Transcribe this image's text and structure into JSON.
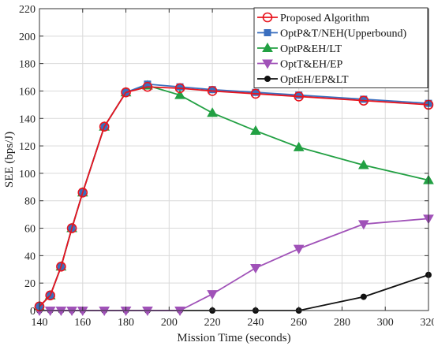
{
  "chart_data": {
    "type": "line",
    "title": "",
    "xlabel": "Mission Time (seconds)",
    "ylabel": "SEE (bps/J)",
    "xlim": [
      140,
      320
    ],
    "ylim": [
      0,
      220
    ],
    "xticks": [
      140,
      160,
      180,
      200,
      220,
      240,
      260,
      280,
      300,
      320
    ],
    "yticks": [
      0,
      20,
      40,
      60,
      80,
      100,
      120,
      140,
      160,
      180,
      200,
      220
    ],
    "grid": true,
    "legend_position": "top-right",
    "series": [
      {
        "name": "Proposed Algorithm",
        "color": "#e8141e",
        "marker": "circle-open",
        "x": [
          140,
          145,
          150,
          155,
          160,
          170,
          180,
          190,
          205,
          220,
          240,
          260,
          290,
          320
        ],
        "y": [
          3,
          11,
          32,
          60,
          86,
          134,
          159,
          163,
          162,
          160,
          158,
          156,
          153,
          150
        ]
      },
      {
        "name": "OptP&T/NEH(Upperbound)",
        "color": "#3a6fbf",
        "marker": "square",
        "x": [
          140,
          145,
          150,
          155,
          160,
          170,
          180,
          190,
          205,
          220,
          240,
          260,
          290,
          320
        ],
        "y": [
          3,
          11,
          32,
          60,
          86,
          134,
          159,
          165,
          163,
          161,
          159,
          157,
          154,
          151
        ]
      },
      {
        "name": "OptP&EH/LT",
        "color": "#22a043",
        "marker": "triangle-up",
        "x": [
          140,
          145,
          150,
          155,
          160,
          170,
          180,
          190,
          205,
          220,
          240,
          260,
          290,
          320
        ],
        "y": [
          3,
          11,
          32,
          60,
          86,
          134,
          159,
          164,
          157,
          144,
          131,
          119,
          106,
          95
        ]
      },
      {
        "name": "OptT&EH/EP",
        "color": "#a052b8",
        "marker": "triangle-down",
        "x": [
          140,
          145,
          150,
          155,
          160,
          170,
          180,
          190,
          205,
          220,
          240,
          260,
          290,
          320
        ],
        "y": [
          0,
          0,
          0,
          0,
          0,
          0,
          0,
          0,
          0,
          12,
          31,
          45,
          63,
          67
        ]
      },
      {
        "name": "OptEH/EP&LT",
        "color": "#111111",
        "marker": "circle-filled",
        "x": [
          140,
          145,
          150,
          155,
          160,
          170,
          180,
          190,
          205,
          220,
          240,
          260,
          290,
          320
        ],
        "y": [
          0,
          0,
          0,
          0,
          0,
          0,
          0,
          0,
          0,
          0,
          0,
          0,
          10,
          26
        ]
      }
    ]
  }
}
